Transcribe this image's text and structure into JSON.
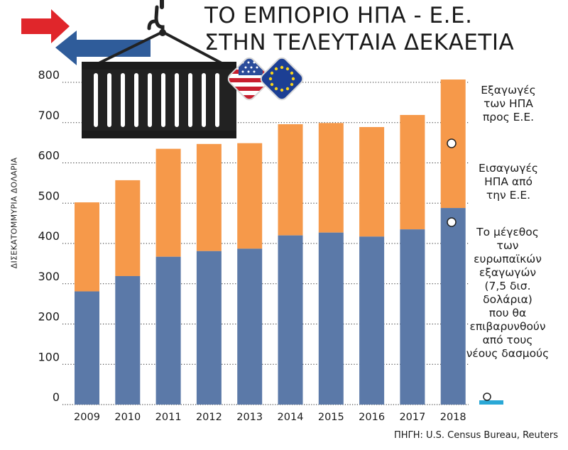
{
  "title": [
    "ΤΟ ΕΜΠΟΡΙΟ ΗΠΑ - Ε.Ε.",
    "ΣΤΗΝ ΤΕΛΕΥΤΑΙΑ ΔΕΚΑΕΤΙΑ"
  ],
  "annotations": {
    "exports": "Εξαγωγές\nτων ΗΠΑ\nπρος Ε.Ε.",
    "imports": "Εισαγωγές\nΗΠΑ από\nτην Ε.Ε.",
    "tariff": "Το μέγεθος\nτων\nευρωπαϊκών\nεξαγωγών\n(7,5 δισ.\nδολάρια)\nπου θα\nεπιβαρυνθούν\nαπό τους\nνέους δασμούς"
  },
  "source": "ΠΗΓΗ: U.S. Census Bureau, Reuters",
  "colors": {
    "imports": "#5b79a8",
    "exports": "#f6994a",
    "tariff": "#2aa8d6",
    "grid": "#222222",
    "arrow_red": "#e0262b",
    "arrow_blue": "#2f5c9a",
    "container": "#222222"
  },
  "icons": [
    "red-arrow-icon",
    "blue-arrow-icon",
    "crane-hook-icon",
    "shipping-container-icon",
    "us-flag-badge-icon",
    "eu-flag-badge-icon"
  ],
  "chart_data": {
    "type": "bar",
    "stacked": true,
    "categories": [
      "2009",
      "2010",
      "2011",
      "2012",
      "2013",
      "2014",
      "2015",
      "2016",
      "2017",
      "2018"
    ],
    "series": [
      {
        "name": "Εισαγωγές ΗΠΑ από την Ε.Ε.",
        "values": [
          281,
          319,
          367,
          381,
          387,
          420,
          427,
          417,
          435,
          488
        ]
      },
      {
        "name": "Εξαγωγές των ΗΠΑ προς Ε.Ε.",
        "values": [
          221,
          238,
          268,
          266,
          262,
          276,
          272,
          272,
          284,
          319
        ]
      }
    ],
    "tariff_value": 7.5,
    "ylabel": "ΔΙΣΕΚΑΤΟΜΜΥΡΙΑ ΔΟΛΑΡΙΑ",
    "ylim": [
      0,
      800
    ],
    "yticks": [
      0,
      100,
      200,
      300,
      400,
      500,
      600,
      700,
      800
    ],
    "grid": true,
    "grid_style": "dotted"
  }
}
